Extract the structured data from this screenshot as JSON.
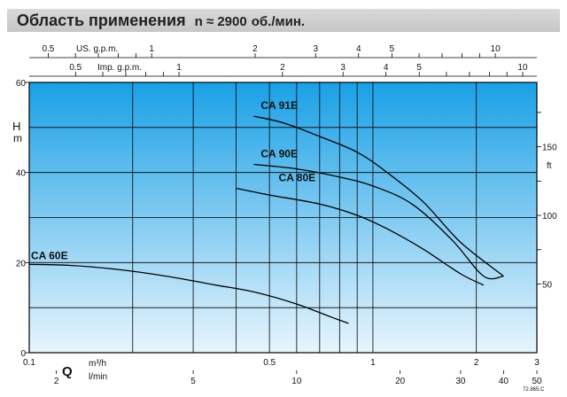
{
  "header": {
    "title": "Область применения",
    "speed": "n ≈ 2900",
    "speed_unit": "об./мин."
  },
  "code": "72.865.C",
  "chart_data": {
    "type": "line",
    "x_scale": "log",
    "xlim": [
      0.1,
      3
    ],
    "ylim": [
      0,
      60
    ],
    "grid": true,
    "background": [
      "#1aa0e6",
      "#e8f5fd"
    ],
    "x_axis": {
      "label": "Q",
      "unit_main": "m³/h",
      "unit_secondary": "l/min",
      "ticks": [
        {
          "v": 0.1,
          "label": "0.1"
        },
        {
          "v": 0.2,
          "label": ""
        },
        {
          "v": 0.3,
          "label": ""
        },
        {
          "v": 0.4,
          "label": ""
        },
        {
          "v": 0.5,
          "label": "0.5"
        },
        {
          "v": 0.6,
          "label": ""
        },
        {
          "v": 0.7,
          "label": ""
        },
        {
          "v": 0.8,
          "label": ""
        },
        {
          "v": 0.9,
          "label": ""
        },
        {
          "v": 1,
          "label": "1"
        },
        {
          "v": 2,
          "label": "2"
        },
        {
          "v": 3,
          "label": "3"
        }
      ],
      "lpm_ticks": [
        2,
        5,
        10,
        20,
        30,
        40,
        50
      ],
      "lpm_labels": [
        "2",
        "5",
        "10",
        "20",
        "30",
        "40",
        "50"
      ]
    },
    "y_axis": {
      "label_h": "H",
      "label_m": "m",
      "ticks": [
        0,
        20,
        40,
        60
      ],
      "tick_labels": [
        "0",
        "20",
        "40",
        "60"
      ],
      "minor": [
        10,
        30,
        50
      ]
    },
    "y_axis_ft": {
      "label": "ft",
      "ticks": [
        50,
        100,
        150
      ],
      "tick_labels": [
        "50",
        "100",
        "150"
      ],
      "minor": [
        75,
        125,
        175
      ]
    },
    "top_scales": [
      {
        "label": "US. g.p.m.",
        "ticks": [
          0.5,
          1,
          2,
          3,
          4,
          5,
          10
        ],
        "tick_labels": [
          "0.5",
          "1",
          "2",
          "3",
          "4",
          "5",
          "10"
        ],
        "minor": [
          0.6,
          0.7,
          0.8,
          0.9,
          6,
          7,
          8,
          9
        ]
      },
      {
        "label": "Imp. g.p.m.",
        "ticks": [
          0.5,
          1,
          2,
          3,
          4,
          5,
          10
        ],
        "tick_labels": [
          "0.5",
          "1",
          "2",
          "3",
          "4",
          "5",
          "10"
        ],
        "minor": [
          0.6,
          0.7,
          0.8,
          0.9,
          6,
          7,
          8,
          9
        ]
      }
    ],
    "series": [
      {
        "name": "CA 60E",
        "x": [
          0.1,
          0.13,
          0.18,
          0.25,
          0.35,
          0.45,
          0.6,
          0.75,
          0.85
        ],
        "y": [
          19.6,
          19.4,
          18.5,
          17,
          15,
          13.5,
          10.8,
          8,
          6.5
        ]
      },
      {
        "name": "CA 80E",
        "x": [
          0.4,
          0.5,
          0.7,
          0.9,
          1.1,
          1.4,
          1.8,
          2.1
        ],
        "y": [
          36.5,
          35,
          33,
          30.5,
          27.5,
          23,
          17.5,
          15
        ]
      },
      {
        "name": "CA 90E",
        "x": [
          0.45,
          0.6,
          0.8,
          1,
          1.3,
          1.7,
          2.1,
          2.4
        ],
        "y": [
          41.8,
          40.8,
          39,
          37,
          33,
          25,
          17,
          17
        ]
      },
      {
        "name": "CA 91E",
        "x": [
          0.45,
          0.55,
          0.7,
          0.9,
          1.1,
          1.4,
          1.8,
          2.4
        ],
        "y": [
          52.5,
          51,
          48,
          44.5,
          40,
          33.5,
          24.5,
          17
        ]
      }
    ]
  }
}
